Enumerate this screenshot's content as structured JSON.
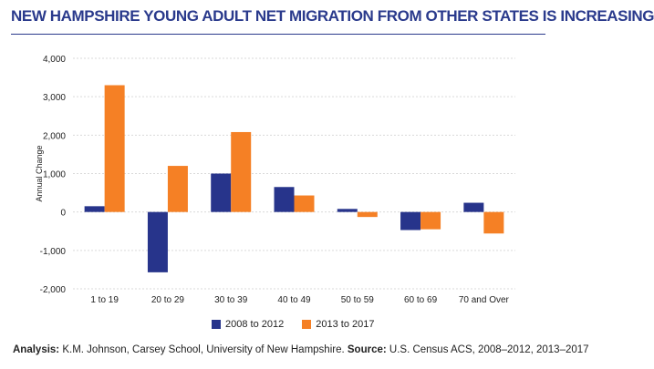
{
  "chart_data": {
    "type": "bar",
    "title": "NEW HAMPSHIRE YOUNG ADULT NET MIGRATION FROM OTHER STATES IS INCREASING",
    "xlabel": "",
    "ylabel": "Annual Change",
    "ylim": [
      -2000,
      4000
    ],
    "yticks": [
      4000,
      3000,
      2000,
      1000,
      0,
      -1000,
      -2000
    ],
    "ytick_labels": [
      "4,000",
      "3,000",
      "2,000",
      "1,000",
      "0",
      "-1,000",
      "-2,000"
    ],
    "grid": true,
    "legend_position": "bottom-center",
    "categories": [
      "1 to 19",
      "20 to 29",
      "30 to 39",
      "40 to 49",
      "50 to 59",
      "60 to 69",
      "70 and Over"
    ],
    "series": [
      {
        "name": "2008 to 2012",
        "color": "#27348b",
        "values": [
          150,
          -1570,
          1000,
          650,
          80,
          -470,
          240
        ]
      },
      {
        "name": "2013 to 2017",
        "color": "#f58025",
        "values": [
          3300,
          1200,
          2080,
          430,
          -130,
          -450,
          -560
        ]
      }
    ]
  },
  "footer": {
    "analysis_label": "Analysis:",
    "analysis_text": " K.M. Johnson, Carsey School, University of New Hampshire. ",
    "source_label": "Source:",
    "source_text": " U.S. Census ACS, 2008–2012, 2013–2017"
  }
}
